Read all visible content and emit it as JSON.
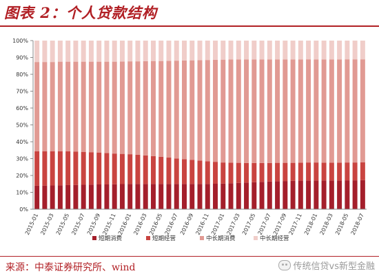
{
  "title": "图表 2：个人贷款结构",
  "source": "来源：中泰证券研究所、wind",
  "watermark": "传统信贷vs新型金融",
  "colors": {
    "short_consume": "#a41f2b",
    "short_business": "#c94440",
    "mid_long_consume": "#e19a93",
    "mid_long_business": "#f0cdc9"
  },
  "chart_data": {
    "type": "stacked-bar-100",
    "categories": [
      "2015-01",
      "2015-02",
      "2015-03",
      "2015-04",
      "2015-05",
      "2015-06",
      "2015-07",
      "2015-08",
      "2015-09",
      "2015-10",
      "2015-11",
      "2015-12",
      "2016-01",
      "2016-02",
      "2016-03",
      "2016-04",
      "2016-05",
      "2016-06",
      "2016-07",
      "2016-08",
      "2016-09",
      "2016-10",
      "2016-11",
      "2016-12",
      "2017-01",
      "2017-02",
      "2017-03",
      "2017-04",
      "2017-05",
      "2017-06",
      "2017-07",
      "2017-08",
      "2017-09",
      "2017-10",
      "2017-11",
      "2017-12",
      "2018-01",
      "2018-02",
      "2018-03",
      "2018-04",
      "2018-05",
      "2018-06",
      "2018-07"
    ],
    "tick_labels": [
      "2015-01",
      "2015-03",
      "2015-05",
      "2015-07",
      "2015-09",
      "2015-11",
      "2016-01",
      "2016-03",
      "2016-05",
      "2016-07",
      "2016-09",
      "2016-11",
      "2017-01",
      "2017-03",
      "2017-05",
      "2017-07",
      "2017-09",
      "2017-11",
      "2018-01",
      "2018-03",
      "2018-05",
      "2018-07"
    ],
    "y_ticks": [
      "0%",
      "10%",
      "20%",
      "30%",
      "40%",
      "50%",
      "60%",
      "70%",
      "80%",
      "90%",
      "100%"
    ],
    "ylim": [
      0,
      100
    ],
    "legend_position": "bottom",
    "series": [
      {
        "name": "短期消费",
        "values": [
          14.0,
          14.0,
          14.1,
          14.2,
          14.3,
          14.4,
          14.5,
          14.6,
          14.7,
          14.7,
          14.8,
          14.9,
          15.0,
          15.0,
          15.0,
          15.0,
          15.0,
          15.0,
          15.0,
          15.0,
          15.0,
          15.0,
          15.0,
          15.1,
          15.2,
          15.4,
          15.6,
          15.8,
          16.0,
          16.2,
          16.4,
          16.6,
          16.7,
          16.8,
          16.9,
          17.0,
          17.0,
          17.0,
          17.0,
          17.0,
          17.1,
          17.1,
          17.2
        ]
      },
      {
        "name": "短期经营",
        "values": [
          20.4,
          20.4,
          20.3,
          20.2,
          20.0,
          19.8,
          19.5,
          19.2,
          18.9,
          18.6,
          18.2,
          17.9,
          17.6,
          17.3,
          16.9,
          16.5,
          16.1,
          15.6,
          15.1,
          14.7,
          14.3,
          13.8,
          13.4,
          13.0,
          12.5,
          12.2,
          11.9,
          11.6,
          11.4,
          11.2,
          11.0,
          10.9,
          10.8,
          10.7,
          10.7,
          10.7,
          10.7,
          10.6,
          10.6,
          10.6,
          10.6,
          10.6,
          10.6
        ]
      },
      {
        "name": "中长期消费",
        "values": [
          52.9,
          52.9,
          52.9,
          53.1,
          53.2,
          53.3,
          53.5,
          53.7,
          53.9,
          54.2,
          54.5,
          54.8,
          55.1,
          55.4,
          55.9,
          56.4,
          56.8,
          57.4,
          58.0,
          58.5,
          59.0,
          59.6,
          60.1,
          60.5,
          61.0,
          61.2,
          61.3,
          61.4,
          61.4,
          61.4,
          61.4,
          61.3,
          61.3,
          61.3,
          61.2,
          61.2,
          61.1,
          61.2,
          61.2,
          61.2,
          61.2,
          61.2,
          61.1
        ]
      },
      {
        "name": "中长期经营",
        "values": [
          12.7,
          12.7,
          12.7,
          12.5,
          12.5,
          12.5,
          12.5,
          12.5,
          12.5,
          12.5,
          12.5,
          12.4,
          12.3,
          12.3,
          12.2,
          12.1,
          12.1,
          12.0,
          11.9,
          11.8,
          11.7,
          11.6,
          11.5,
          11.4,
          11.3,
          11.2,
          11.2,
          11.2,
          11.2,
          11.2,
          11.2,
          11.2,
          11.2,
          11.2,
          11.2,
          11.1,
          11.2,
          11.2,
          11.2,
          11.2,
          11.1,
          11.1,
          11.1
        ]
      }
    ]
  }
}
